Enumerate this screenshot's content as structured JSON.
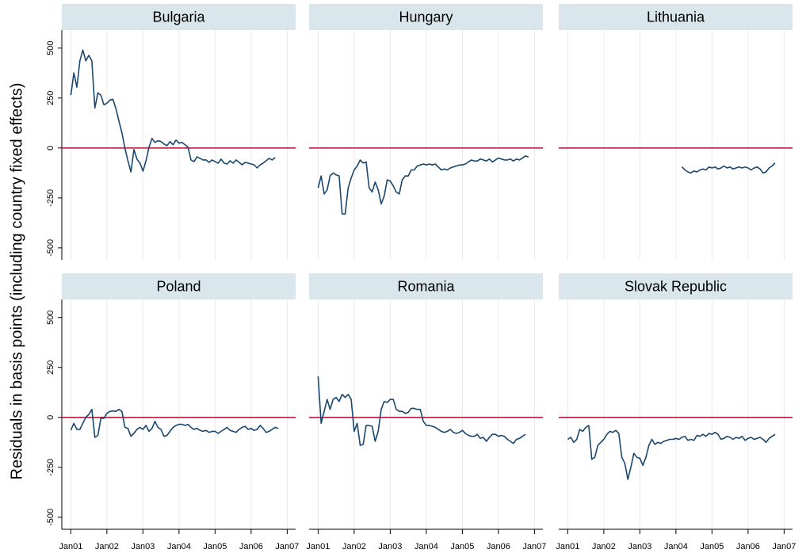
{
  "ytitle": "Residuals in basis points (including country fixed effects)",
  "xlim": [
    -3,
    74.8
  ],
  "xticks": [
    {
      "value": 0,
      "label": "Jan01"
    },
    {
      "value": 12,
      "label": "Jan02"
    },
    {
      "value": 24,
      "label": "Jan03"
    },
    {
      "value": 36,
      "label": "Jan04"
    },
    {
      "value": 48,
      "label": "Jan05"
    },
    {
      "value": 60,
      "label": "Jan06"
    },
    {
      "value": 72,
      "label": "Jan07"
    }
  ],
  "ylim": [
    -560,
    590
  ],
  "yticks": [
    -500,
    -250,
    0,
    250,
    500
  ],
  "grid": "x",
  "chart_data": [
    {
      "type": "line",
      "title": "Bulgaria",
      "x": [
        0,
        1,
        2,
        3,
        4,
        5,
        6,
        7,
        8,
        9,
        10,
        11,
        12,
        13,
        14,
        15,
        16,
        17,
        18,
        19,
        20,
        21,
        22,
        23,
        24,
        25,
        26,
        27,
        28,
        29,
        30,
        31,
        32,
        33,
        34,
        35,
        36,
        37,
        38,
        39,
        40,
        41,
        42,
        43,
        44,
        45,
        46,
        47,
        48,
        49,
        50,
        51,
        52,
        53,
        54,
        55,
        56,
        57,
        58,
        59,
        60,
        61,
        62,
        63,
        64,
        65,
        66,
        67,
        68
      ],
      "series": [
        {
          "color": "#1a476f",
          "values": [
            264,
            376,
            304,
            436,
            490,
            436,
            464,
            436,
            200,
            276,
            264,
            216,
            224,
            240,
            244,
            196,
            136,
            76,
            0,
            -64,
            -120,
            -8,
            -56,
            -76,
            -116,
            -64,
            4,
            48,
            28,
            36,
            32,
            20,
            12,
            32,
            16,
            40,
            24,
            28,
            16,
            4,
            -60,
            -68,
            -44,
            -52,
            -60,
            -60,
            -72,
            -60,
            -68,
            -76,
            -56,
            -76,
            -80,
            -64,
            -76,
            -60,
            -72,
            -84,
            -72,
            -76,
            -80,
            -84,
            -100,
            -84,
            -76,
            -64,
            -52,
            -60,
            -48
          ]
        }
      ],
      "hline": {
        "value": 0,
        "color": "#b11e3f"
      }
    },
    {
      "type": "line",
      "title": "Hungary",
      "x": [
        0,
        1,
        2,
        3,
        4,
        5,
        6,
        7,
        8,
        9,
        10,
        11,
        12,
        13,
        14,
        15,
        16,
        17,
        18,
        19,
        20,
        21,
        22,
        23,
        24,
        25,
        26,
        27,
        28,
        29,
        30,
        31,
        32,
        33,
        34,
        35,
        36,
        37,
        38,
        39,
        40,
        41,
        42,
        43,
        44,
        45,
        46,
        47,
        48,
        49,
        50,
        51,
        52,
        53,
        54,
        55,
        56,
        57,
        58,
        59,
        60,
        61,
        62,
        63,
        64,
        65,
        66,
        67,
        68,
        69,
        70
      ],
      "series": [
        {
          "color": "#1a476f",
          "values": [
            -200,
            -140,
            -230,
            -210,
            -140,
            -125,
            -135,
            -140,
            -330,
            -330,
            -200,
            -150,
            -110,
            -90,
            -60,
            -75,
            -70,
            -200,
            -220,
            -170,
            -210,
            -280,
            -240,
            -160,
            -165,
            -190,
            -220,
            -230,
            -160,
            -140,
            -140,
            -110,
            -110,
            -90,
            -85,
            -80,
            -85,
            -80,
            -85,
            -80,
            -95,
            -110,
            -105,
            -110,
            -100,
            -95,
            -90,
            -85,
            -85,
            -80,
            -70,
            -60,
            -65,
            -65,
            -55,
            -60,
            -65,
            -55,
            -70,
            -60,
            -50,
            -55,
            -60,
            -60,
            -55,
            -65,
            -55,
            -60,
            -50,
            -40,
            -45
          ]
        }
      ],
      "hline": {
        "value": 0,
        "color": "#b11e3f"
      }
    },
    {
      "type": "line",
      "title": "Lithuania",
      "x": [
        38,
        39,
        40,
        41,
        42,
        43,
        44,
        45,
        46,
        47,
        48,
        49,
        50,
        51,
        52,
        53,
        54,
        55,
        56,
        57,
        58,
        59,
        60,
        61,
        62,
        63,
        64,
        65,
        66,
        67,
        68,
        69
      ],
      "series": [
        {
          "color": "#1a476f",
          "values": [
            -95,
            -110,
            -120,
            -125,
            -115,
            -120,
            -110,
            -105,
            -110,
            -95,
            -100,
            -95,
            -105,
            -100,
            -90,
            -100,
            -95,
            -105,
            -100,
            -95,
            -100,
            -95,
            -100,
            -110,
            -100,
            -95,
            -105,
            -125,
            -120,
            -100,
            -90,
            -75
          ]
        }
      ],
      "hline": {
        "value": 0,
        "color": "#b11e3f"
      }
    },
    {
      "type": "line",
      "title": "Poland",
      "x": [
        0,
        1,
        2,
        3,
        4,
        5,
        6,
        7,
        8,
        9,
        10,
        11,
        12,
        13,
        14,
        15,
        16,
        17,
        18,
        19,
        20,
        21,
        22,
        23,
        24,
        25,
        26,
        27,
        28,
        29,
        30,
        31,
        32,
        33,
        34,
        35,
        36,
        37,
        38,
        39,
        40,
        41,
        42,
        43,
        44,
        45,
        46,
        47,
        48,
        49,
        50,
        51,
        52,
        53,
        54,
        55,
        56,
        57,
        58,
        59,
        60,
        61,
        62,
        63,
        64,
        65,
        66,
        67,
        68,
        69
      ],
      "series": [
        {
          "color": "#1a476f",
          "values": [
            -64,
            -30,
            -60,
            -60,
            -30,
            0,
            15,
            40,
            -100,
            -90,
            -5,
            -5,
            20,
            30,
            32,
            30,
            40,
            30,
            -50,
            -55,
            -95,
            -80,
            -60,
            -50,
            -60,
            -40,
            -70,
            -55,
            -20,
            -50,
            -60,
            -95,
            -90,
            -70,
            -50,
            -40,
            -35,
            -35,
            -40,
            -35,
            -50,
            -60,
            -55,
            -65,
            -70,
            -65,
            -75,
            -70,
            -70,
            -80,
            -70,
            -60,
            -50,
            -65,
            -70,
            -75,
            -60,
            -50,
            -45,
            -60,
            -55,
            -65,
            -60,
            -40,
            -55,
            -75,
            -70,
            -60,
            -50,
            -55
          ]
        }
      ],
      "hline": {
        "value": 0,
        "color": "#b11e3f"
      }
    },
    {
      "type": "line",
      "title": "Romania",
      "x": [
        0,
        1,
        2,
        3,
        4,
        5,
        6,
        7,
        8,
        9,
        10,
        11,
        12,
        13,
        14,
        15,
        16,
        17,
        18,
        19,
        20,
        21,
        22,
        23,
        24,
        25,
        26,
        27,
        28,
        29,
        30,
        31,
        32,
        33,
        34,
        35,
        36,
        37,
        38,
        39,
        40,
        41,
        42,
        43,
        44,
        45,
        46,
        47,
        48,
        49,
        50,
        51,
        52,
        53,
        54,
        55,
        56,
        57,
        58,
        59,
        60,
        61,
        62,
        63,
        64,
        65,
        66,
        67,
        68,
        69
      ],
      "series": [
        {
          "color": "#1a476f",
          "values": [
            205,
            -30,
            30,
            90,
            40,
            90,
            100,
            80,
            115,
            100,
            115,
            90,
            -70,
            -30,
            -140,
            -135,
            -40,
            -40,
            -45,
            -120,
            -70,
            40,
            80,
            75,
            90,
            90,
            40,
            30,
            30,
            20,
            25,
            45,
            45,
            40,
            40,
            -20,
            -40,
            -40,
            -45,
            -50,
            -60,
            -70,
            -75,
            -70,
            -60,
            -75,
            -80,
            -75,
            -65,
            -80,
            -90,
            -95,
            -95,
            -85,
            -105,
            -100,
            -120,
            -100,
            -85,
            -85,
            -95,
            -90,
            -95,
            -110,
            -120,
            -130,
            -110,
            -105,
            -95,
            -85
          ]
        }
      ],
      "hline": {
        "value": 0,
        "color": "#b11e3f"
      }
    },
    {
      "type": "line",
      "title": "Slovak Republic",
      "x": [
        0,
        1,
        2,
        3,
        4,
        5,
        6,
        7,
        8,
        9,
        10,
        11,
        12,
        13,
        14,
        15,
        16,
        17,
        18,
        19,
        20,
        21,
        22,
        23,
        24,
        25,
        26,
        27,
        28,
        29,
        30,
        31,
        32,
        33,
        34,
        35,
        36,
        37,
        38,
        39,
        40,
        41,
        42,
        43,
        44,
        45,
        46,
        47,
        48,
        49,
        50,
        51,
        52,
        53,
        54,
        55,
        56,
        57,
        58,
        59,
        60,
        61,
        62,
        63,
        64,
        65,
        66,
        67,
        68,
        69
      ],
      "series": [
        {
          "color": "#1a476f",
          "values": [
            -110,
            -100,
            -125,
            -110,
            -60,
            -70,
            -50,
            -40,
            -210,
            -200,
            -140,
            -125,
            -110,
            -85,
            -70,
            -75,
            -65,
            -80,
            -200,
            -230,
            -310,
            -250,
            -180,
            -200,
            -205,
            -240,
            -200,
            -140,
            -110,
            -135,
            -125,
            -130,
            -120,
            -115,
            -110,
            -110,
            -105,
            -110,
            -100,
            -95,
            -115,
            -110,
            -115,
            -90,
            -95,
            -85,
            -95,
            -80,
            -85,
            -75,
            -85,
            -110,
            -105,
            -95,
            -100,
            -110,
            -100,
            -105,
            -95,
            -115,
            -105,
            -100,
            -110,
            -105,
            -100,
            -110,
            -125,
            -105,
            -95,
            -85
          ]
        }
      ],
      "hline": {
        "value": 0,
        "color": "#b11e3f"
      }
    }
  ]
}
